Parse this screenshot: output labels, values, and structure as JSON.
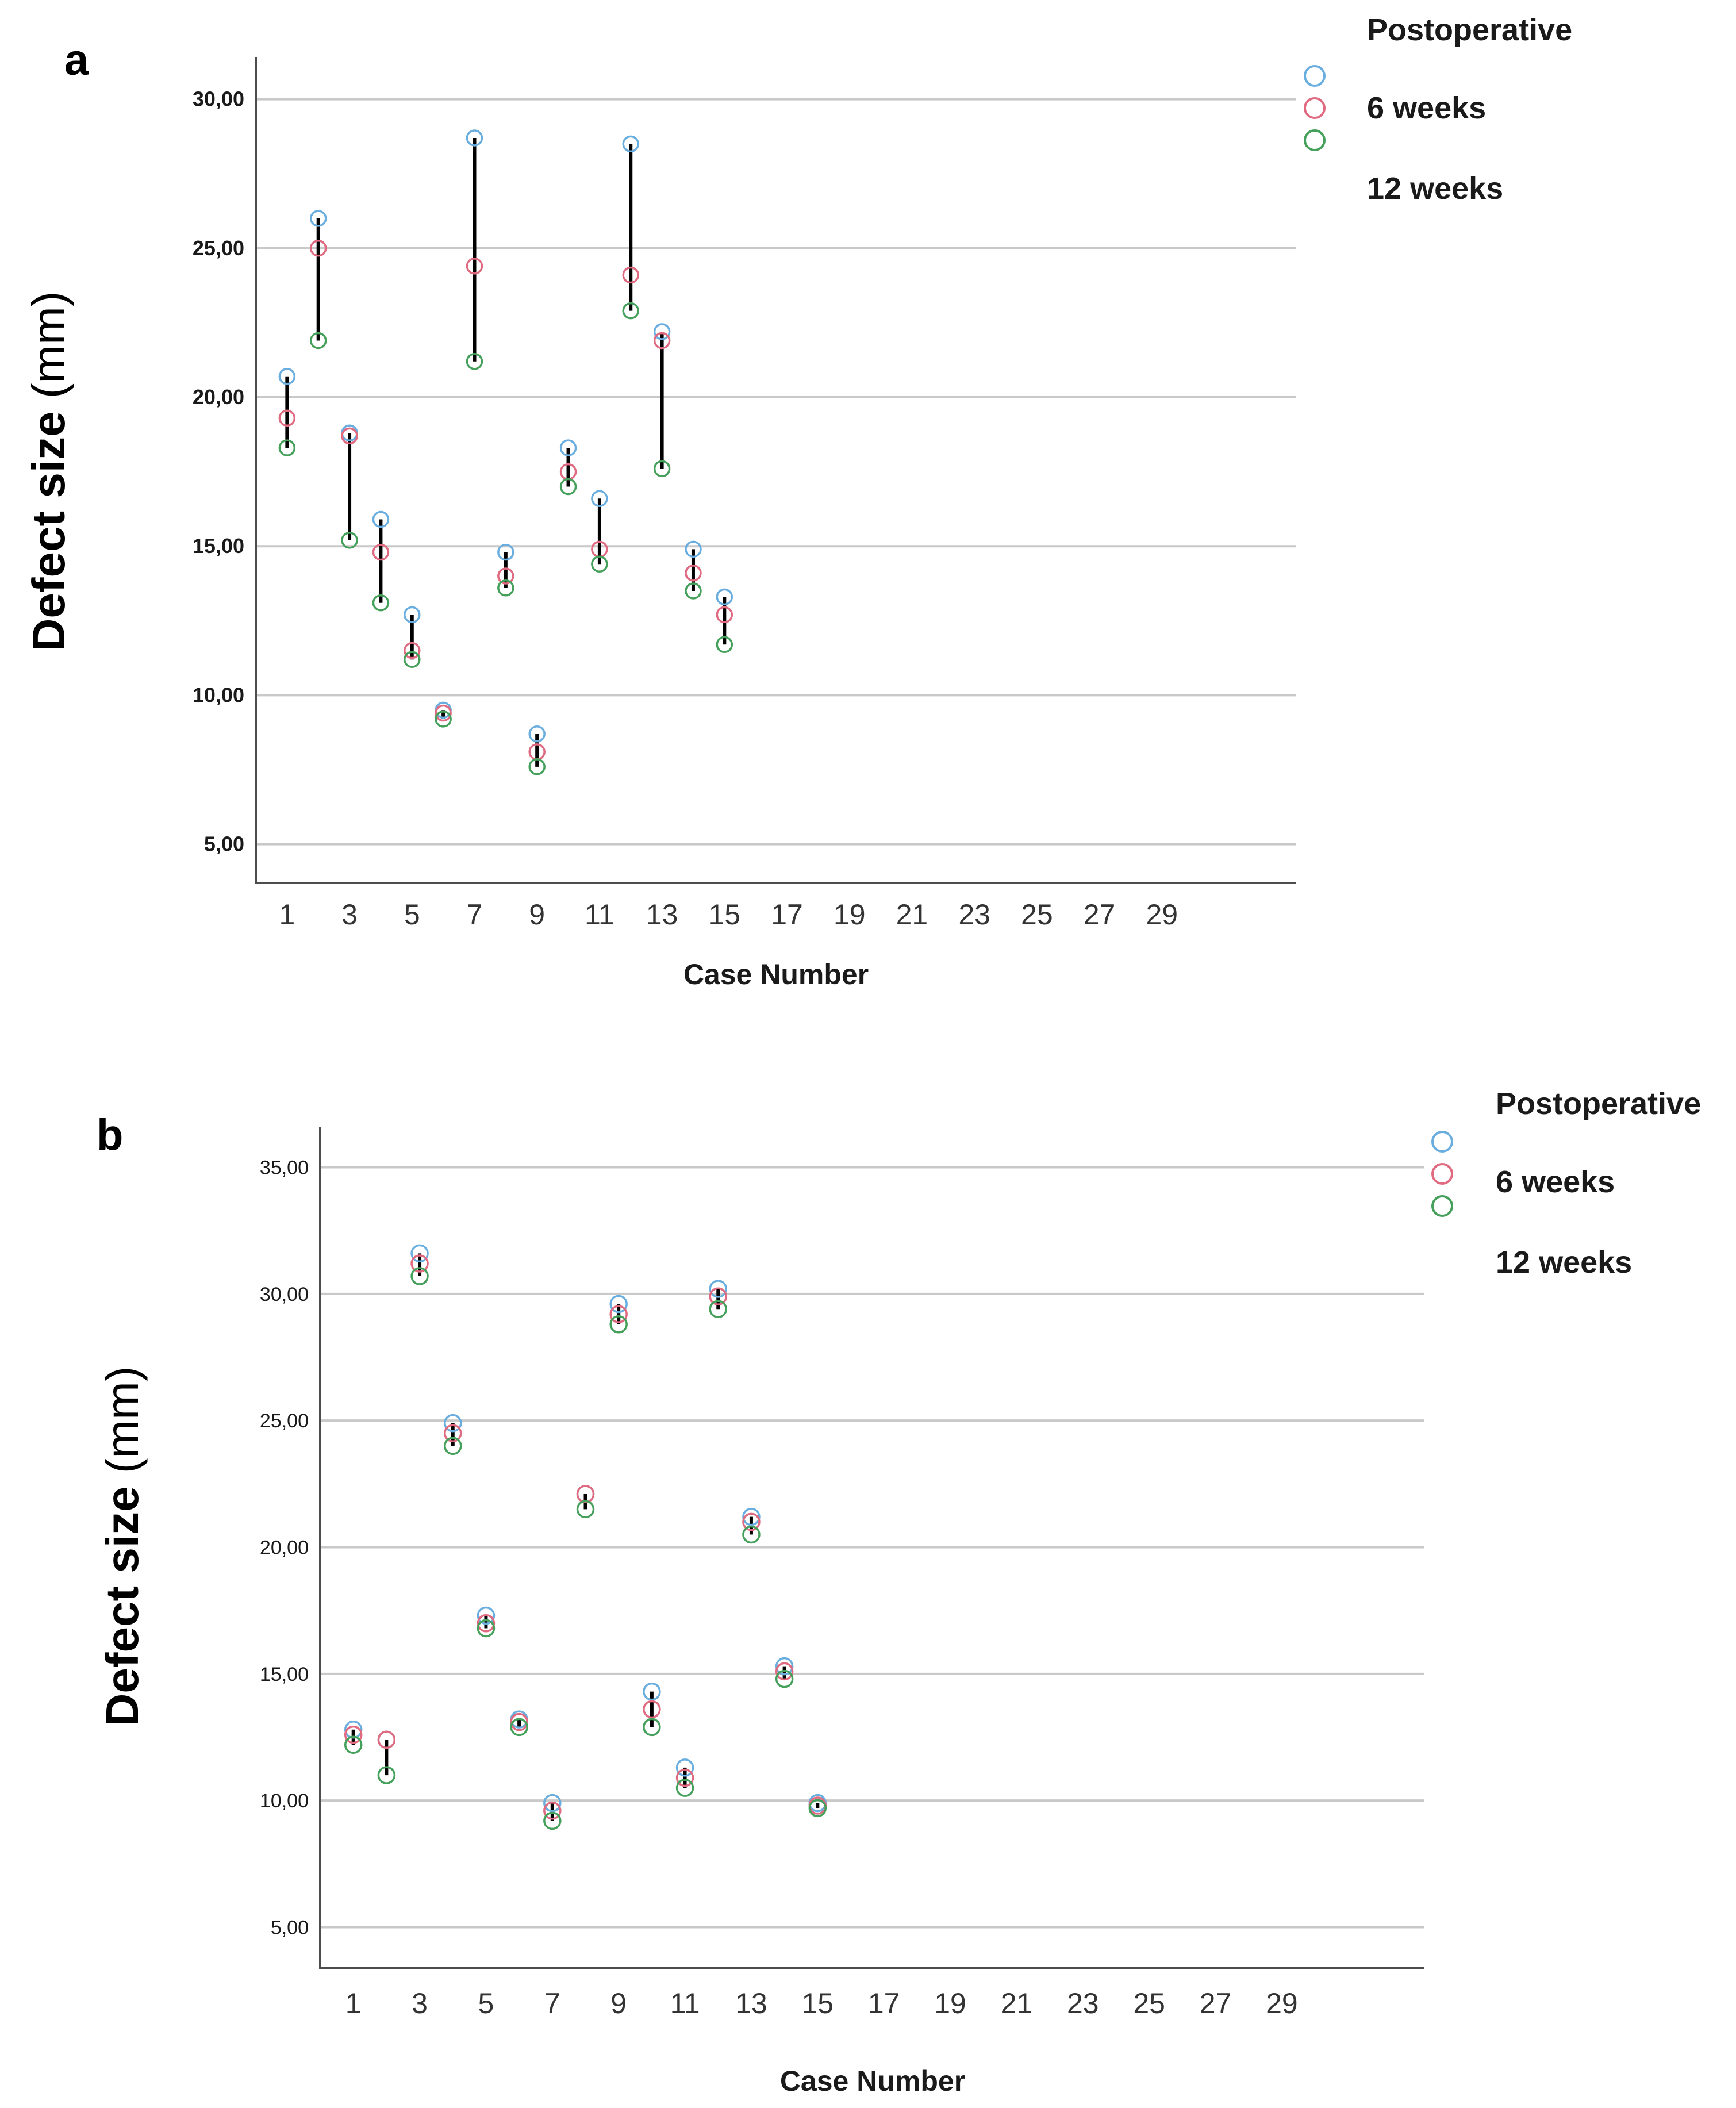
{
  "colors": {
    "postoperative": "#6aaee0",
    "weeks6": "#e06a80",
    "weeks12": "#44a05a",
    "range_line": "#000000",
    "grid": "#c9c9c9"
  },
  "chart_data": [
    {
      "panel": "a",
      "type": "scatter",
      "subtype": "high-low range plot",
      "ylabel": {
        "bold": "Defect size",
        "normal": "(mm)"
      },
      "xlabel": "Case Number",
      "ylim": [
        3.7,
        31.4
      ],
      "yticks": [
        5,
        10,
        15,
        20,
        25,
        30
      ],
      "ytick_labels": [
        "5,00",
        "10,00",
        "15,00",
        "20,00",
        "25,00",
        "30,00"
      ],
      "xlim": [
        0,
        33.3
      ],
      "xticks": [
        1,
        3,
        5,
        7,
        9,
        11,
        13,
        15,
        17,
        19,
        21,
        23,
        25,
        27,
        29
      ],
      "xtick_labels": [
        "1",
        "3",
        "5",
        "7",
        "9",
        "11",
        "13",
        "15",
        "17",
        "19",
        "21",
        "23",
        "25",
        "27",
        "29"
      ],
      "grid": true,
      "legend": {
        "position": "top-right",
        "entries": [
          "Postoperative",
          "6 weeks",
          "12 weeks"
        ]
      },
      "series": [
        {
          "name": "Postoperative",
          "color_key": "postoperative",
          "x": [
            1,
            2,
            3,
            4,
            5,
            6,
            7,
            8,
            9,
            10,
            11,
            12,
            13,
            14,
            15
          ],
          "values": [
            20.7,
            26.0,
            18.8,
            15.9,
            12.7,
            9.5,
            28.7,
            14.8,
            8.7,
            18.3,
            16.6,
            28.5,
            22.2,
            14.9,
            13.3
          ]
        },
        {
          "name": "6 weeks",
          "color_key": "weeks6",
          "x": [
            1,
            2,
            3,
            4,
            5,
            6,
            7,
            8,
            9,
            10,
            11,
            12,
            13,
            14,
            15
          ],
          "values": [
            19.3,
            25.0,
            18.7,
            14.8,
            11.5,
            9.4,
            24.4,
            14.0,
            8.1,
            17.5,
            14.9,
            24.1,
            21.9,
            14.1,
            12.7
          ]
        },
        {
          "name": "12 weeks",
          "color_key": "weeks12",
          "x": [
            1,
            2,
            3,
            4,
            5,
            6,
            7,
            8,
            9,
            10,
            11,
            12,
            13,
            14,
            15
          ],
          "values": [
            18.3,
            21.9,
            15.2,
            13.1,
            11.2,
            9.2,
            21.2,
            13.6,
            7.6,
            17.0,
            14.4,
            22.9,
            17.6,
            13.5,
            11.7
          ]
        }
      ]
    },
    {
      "panel": "b",
      "type": "scatter",
      "subtype": "high-low range plot",
      "ylabel": {
        "bold": "Defect size",
        "normal": "(mm)"
      },
      "xlabel": "Case Number",
      "ylim": [
        3.4,
        36.6
      ],
      "yticks": [
        5,
        10,
        15,
        20,
        25,
        30,
        35
      ],
      "ytick_labels": [
        "5,00",
        "10,00",
        "15,00",
        "20,00",
        "25,00",
        "30,00",
        "35,00"
      ],
      "xlim": [
        0,
        33.3
      ],
      "xticks": [
        1,
        3,
        5,
        7,
        9,
        11,
        13,
        15,
        17,
        19,
        21,
        23,
        25,
        27,
        29
      ],
      "xtick_labels": [
        "1",
        "3",
        "5",
        "7",
        "9",
        "11",
        "13",
        "15",
        "17",
        "19",
        "21",
        "23",
        "25",
        "27",
        "29"
      ],
      "grid": true,
      "legend": {
        "position": "top-right",
        "entries": [
          "Postoperative",
          "6 weeks",
          "12 weeks"
        ]
      },
      "series": [
        {
          "name": "Postoperative",
          "color_key": "postoperative",
          "x": [
            1,
            2,
            3,
            4,
            5,
            6,
            7,
            8,
            9,
            10,
            11,
            12,
            13,
            14,
            15
          ],
          "values": [
            12.8,
            12.4,
            31.6,
            24.9,
            17.3,
            13.2,
            9.9,
            22.1,
            29.6,
            14.3,
            11.3,
            30.2,
            21.2,
            15.3,
            9.9
          ]
        },
        {
          "name": "6 weeks",
          "color_key": "weeks6",
          "x": [
            1,
            2,
            3,
            4,
            5,
            6,
            7,
            8,
            9,
            10,
            11,
            12,
            13,
            14,
            15
          ],
          "values": [
            12.6,
            12.4,
            31.2,
            24.5,
            17.0,
            13.1,
            9.6,
            22.1,
            29.2,
            13.6,
            10.9,
            29.9,
            21.0,
            15.1,
            9.8
          ]
        },
        {
          "name": "12 weeks",
          "color_key": "weeks12",
          "x": [
            1,
            2,
            3,
            4,
            5,
            6,
            7,
            8,
            9,
            10,
            11,
            12,
            13,
            14,
            15
          ],
          "values": [
            12.2,
            11.0,
            30.7,
            24.0,
            16.8,
            12.9,
            9.2,
            21.5,
            28.8,
            12.9,
            10.5,
            29.4,
            20.5,
            14.8,
            9.7
          ]
        }
      ]
    }
  ]
}
